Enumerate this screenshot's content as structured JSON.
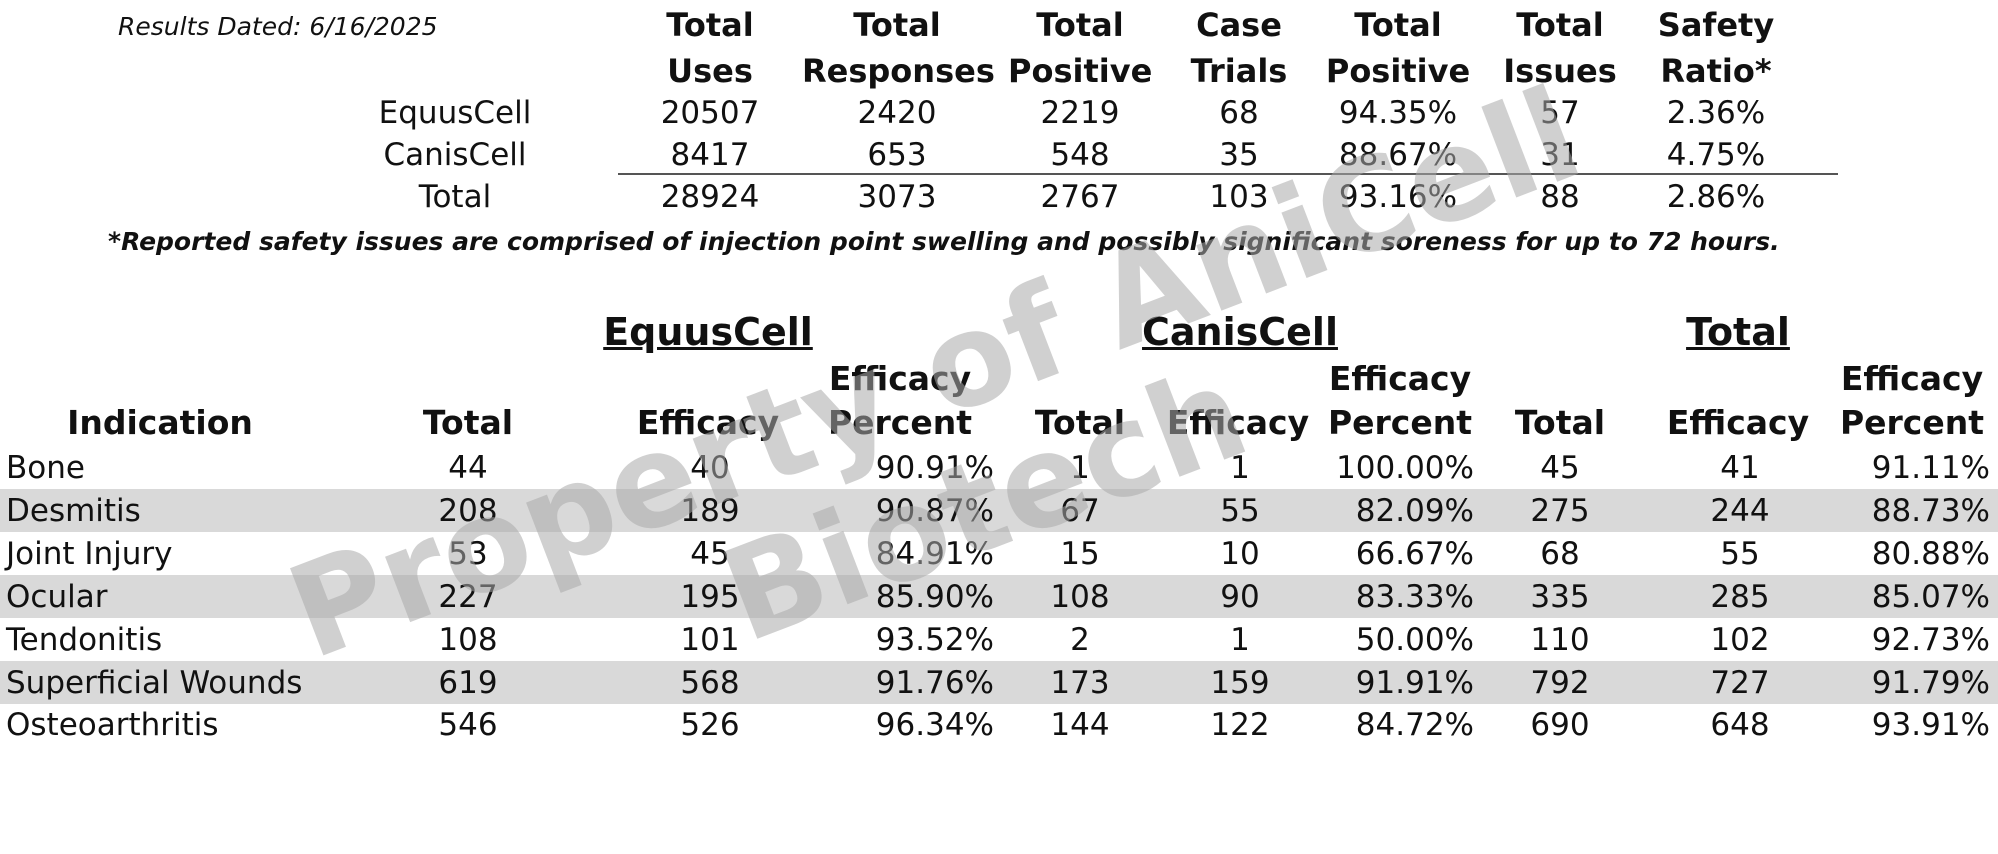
{
  "results_dated": "Results Dated:  6/16/2025",
  "summary": {
    "headers": [
      [
        "Total",
        "Uses"
      ],
      [
        "Total",
        "Responses"
      ],
      [
        "Total",
        "Positive"
      ],
      [
        "Case",
        "Trials"
      ],
      [
        "Total",
        "Positive"
      ],
      [
        "Total",
        "Issues"
      ],
      [
        "Safety",
        "Ratio*"
      ]
    ],
    "rows": [
      {
        "label": "EquusCell",
        "values": [
          "20507",
          "2420",
          "2219",
          "68",
          "94.35%",
          "57",
          "2.36%"
        ]
      },
      {
        "label": "CanisCell",
        "values": [
          "8417",
          "653",
          "548",
          "35",
          "88.67%",
          "31",
          "4.75%"
        ]
      },
      {
        "label": "Total",
        "values": [
          "28924",
          "3073",
          "2767",
          "103",
          "93.16%",
          "88",
          "2.86%"
        ]
      }
    ]
  },
  "footnote": "*Reported safety issues are comprised of injection point swelling and possibly significant soreness for up to 72 hours.",
  "detail": {
    "groups": [
      "EquusCell",
      "CanisCell",
      "Total"
    ],
    "indication_header": "Indication",
    "total_header": "Total",
    "efficacy_header": "Efficacy",
    "efficacy_percent_header": [
      "Efficacy",
      "Percent"
    ],
    "rows": [
      {
        "indication": "Bone",
        "values": [
          "44",
          "40",
          "90.91%",
          "1",
          "1",
          "100.00%",
          "45",
          "41",
          "91.11%"
        ]
      },
      {
        "indication": "Desmitis",
        "values": [
          "208",
          "189",
          "90.87%",
          "67",
          "55",
          "82.09%",
          "275",
          "244",
          "88.73%"
        ]
      },
      {
        "indication": "Joint Injury",
        "values": [
          "53",
          "45",
          "84.91%",
          "15",
          "10",
          "66.67%",
          "68",
          "55",
          "80.88%"
        ]
      },
      {
        "indication": "Ocular",
        "values": [
          "227",
          "195",
          "85.90%",
          "108",
          "90",
          "83.33%",
          "335",
          "285",
          "85.07%"
        ]
      },
      {
        "indication": "Tendonitis",
        "values": [
          "108",
          "101",
          "93.52%",
          "2",
          "1",
          "50.00%",
          "110",
          "102",
          "92.73%"
        ]
      },
      {
        "indication": "Superficial Wounds",
        "values": [
          "619",
          "568",
          "91.76%",
          "173",
          "159",
          "91.91%",
          "792",
          "727",
          "91.79%"
        ]
      },
      {
        "indication": "Osteoarthritis",
        "values": [
          "546",
          "526",
          "96.34%",
          "144",
          "122",
          "84.72%",
          "690",
          "648",
          "93.91%"
        ]
      }
    ]
  },
  "watermark": "Property of AniCell Biotech",
  "colors": {
    "band": "#d9d9d9",
    "watermark": "#aaaaaa",
    "text": "#111111"
  }
}
